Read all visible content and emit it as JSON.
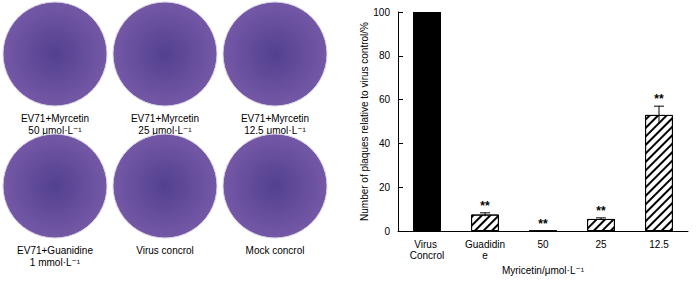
{
  "chart_data": {
    "type": "bar",
    "categories": [
      "Virus Concrol",
      "Guadidine",
      "50",
      "25",
      "12.5"
    ],
    "values": [
      100,
      7.5,
      0,
      5.5,
      53
    ],
    "errors": [
      null,
      0.8,
      0,
      0.5,
      4
    ],
    "significance": [
      null,
      "**",
      "**",
      "**",
      "**"
    ],
    "colors": [
      "#000000",
      "#ffffff",
      "#ffffff",
      "#ffffff",
      "#ffffff"
    ],
    "x_label": "Myricetin/μmol·L⁻¹",
    "y_label": "Number of plaques relative to virus control/%",
    "ylim": [
      0,
      100
    ],
    "yticks": [
      0,
      20,
      40,
      60,
      80,
      100
    ],
    "grid": false
  },
  "plaque_images": [
    {
      "label": [
        "EV71+Myrcetin",
        "50 μmol·L⁻¹"
      ]
    },
    {
      "label": [
        "EV71+Myrcetin",
        "25 μmol·L⁻¹"
      ]
    },
    {
      "label": [
        "EV71+Myrcetin",
        "12.5 μmol·L⁻¹"
      ]
    },
    {
      "label": [
        "EV71+Guanidine",
        "1 mmol·L⁻¹"
      ]
    },
    {
      "label": [
        "Virus concrol"
      ]
    },
    {
      "label": [
        "Mock concrol"
      ]
    }
  ]
}
